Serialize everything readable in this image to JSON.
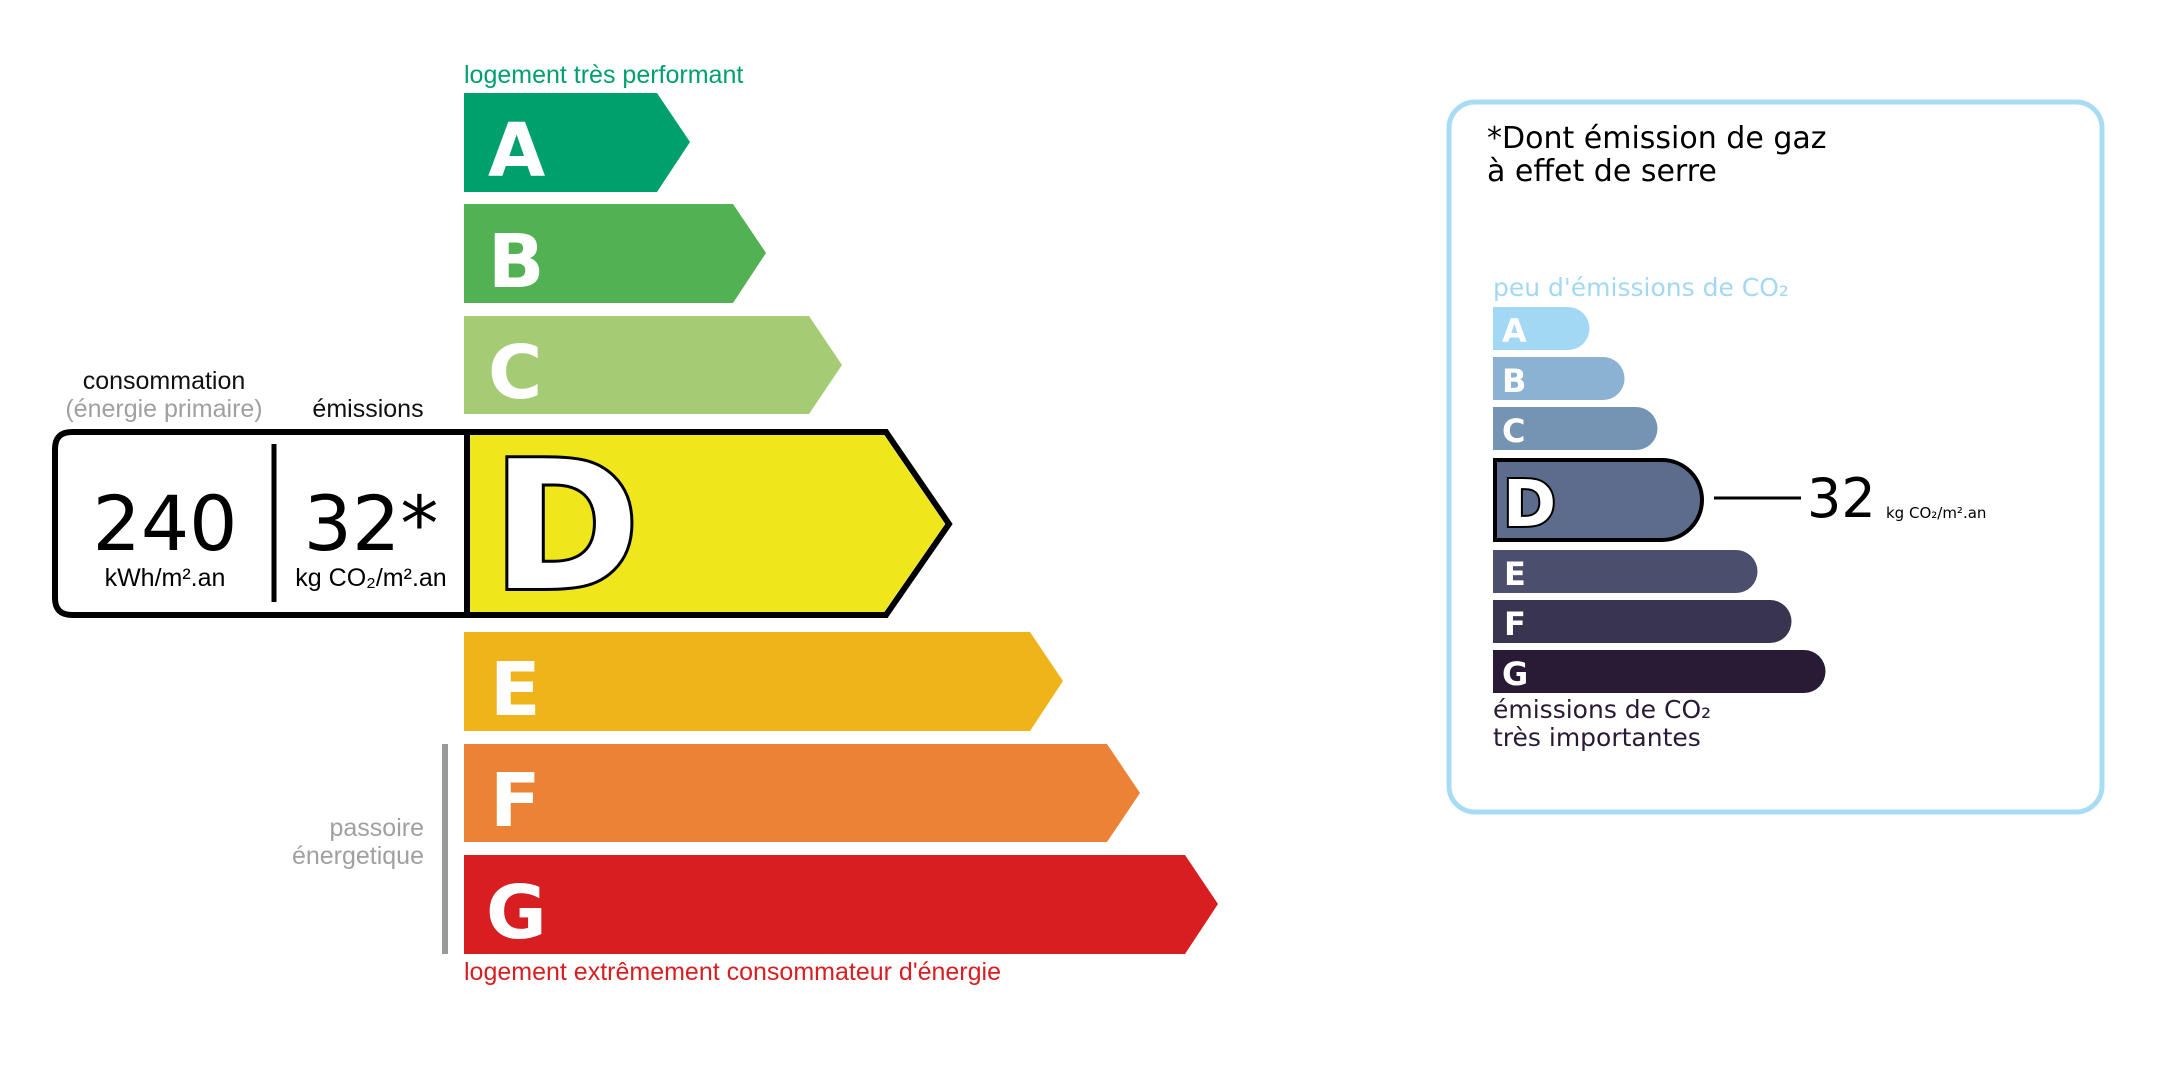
{
  "energy": {
    "top_label": "logement très performant",
    "bottom_label": "logement extrêmement consommateur d'énergie",
    "passoire_line1": "passoire",
    "passoire_line2": "énergetique",
    "consumption_label": "consommation",
    "consumption_sub": "(énergie primaire)",
    "emissions_label": "émissions",
    "consumption_value": "240",
    "consumption_unit": "kWh/m².an",
    "emissions_value": "32*",
    "emissions_unit": "kg CO₂/m².an",
    "current_class": "D",
    "classes": [
      {
        "letter": "A",
        "color": "#00a06d"
      },
      {
        "letter": "B",
        "color": "#52b153"
      },
      {
        "letter": "C",
        "color": "#a5cc74"
      },
      {
        "letter": "D",
        "color": "#f0e61c"
      },
      {
        "letter": "E",
        "color": "#efb41a"
      },
      {
        "letter": "F",
        "color": "#eb8235"
      },
      {
        "letter": "G",
        "color": "#d81e20"
      }
    ],
    "top_label_color": "#00a06d",
    "bottom_label_color": "#d81e20"
  },
  "ges": {
    "title_line1": "*Dont émission de gaz",
    "title_line2": "à effet de serre",
    "top_label": "peu d'émissions de CO₂",
    "bottom_line1": "émissions de CO₂",
    "bottom_line2": "très importantes",
    "value": "32",
    "unit": "kg CO₂/m².an",
    "current_class": "D",
    "border_color": "#a8dcf5",
    "classes": [
      {
        "letter": "A",
        "color": "#a3d8f4"
      },
      {
        "letter": "B",
        "color": "#8bb2d2"
      },
      {
        "letter": "C",
        "color": "#7594b3"
      },
      {
        "letter": "D",
        "color": "#5d6b8c"
      },
      {
        "letter": "E",
        "color": "#4b4e6d"
      },
      {
        "letter": "F",
        "color": "#393551"
      },
      {
        "letter": "G",
        "color": "#291a35"
      }
    ]
  }
}
